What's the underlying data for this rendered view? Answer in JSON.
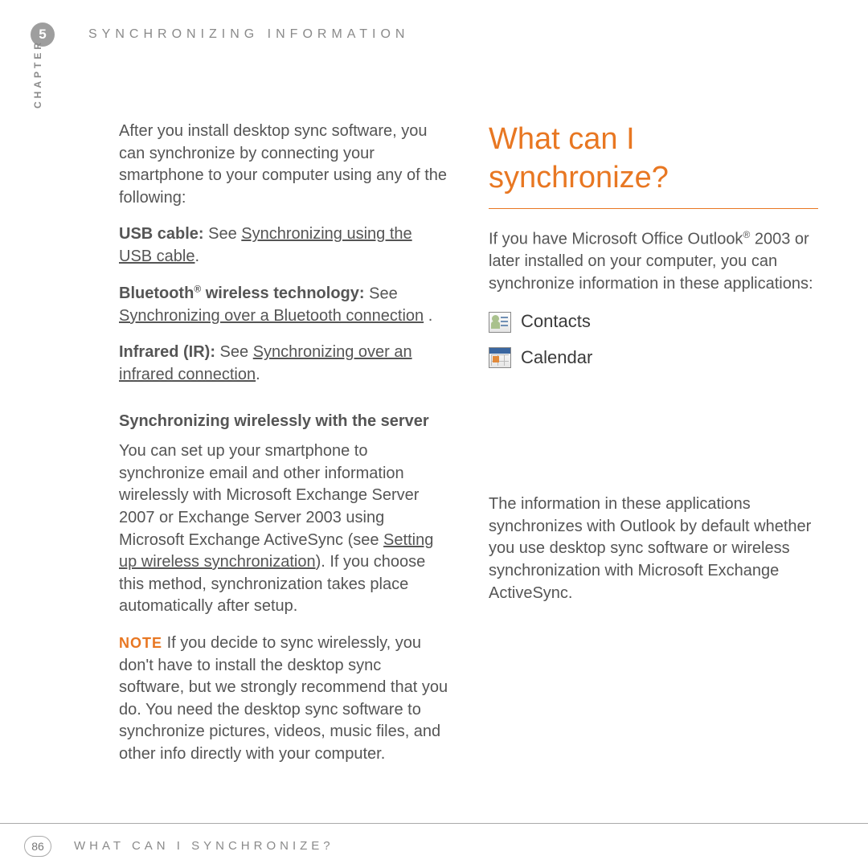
{
  "chapter": {
    "number": "5",
    "label": "CHAPTER"
  },
  "header": {
    "title": "SYNCHRONIZING INFORMATION"
  },
  "left": {
    "intro": "After you install desktop sync software, you can synchronize by connecting your smartphone to your computer using any of the following:",
    "usb_label": "USB cable:",
    "usb_see": " See ",
    "usb_link": "Synchronizing using the USB cable",
    "usb_period": ".",
    "bt_label": "Bluetooth",
    "bt_reg": "®",
    "bt_label2": " wireless technology:",
    "bt_see": " See ",
    "bt_link": "Synchronizing over a Bluetooth connection",
    "bt_period": " .",
    "ir_label": "Infrared (IR):",
    "ir_see": " See ",
    "ir_link": "Synchronizing over an infrared connection",
    "ir_period": ".",
    "subhead": "Synchronizing wirelessly with the server",
    "wireless_p1a": "You can set up your smartphone to synchronize email and other information wirelessly with Microsoft Exchange Server 2007 or Exchange Server 2003 using Microsoft Exchange ActiveSync (see ",
    "wireless_link": "Setting up wireless synchronization",
    "wireless_p1b": "). If you choose this method, synchronization takes place automatically after setup.",
    "note_label": "NOTE",
    "note_body": " If you decide to sync wirelessly, you don't have to install the desktop sync software, but we strongly recommend that you do. You need the desktop sync software to synchronize pictures, videos, music files, and other info directly with your computer."
  },
  "right": {
    "heading": "What can I synchronize?",
    "intro_a": "If you have Microsoft Office Outlook",
    "intro_reg": "®",
    "intro_b": " 2003 or later installed on your computer, you can synchronize information in these applications:",
    "contacts_label": "Contacts",
    "calendar_label": "Calendar",
    "p2": "The information in these applications synchronizes with Outlook by default whether you use desktop sync software or wireless synchronization with Microsoft Exchange ActiveSync."
  },
  "footer": {
    "page": "86",
    "title": "WHAT CAN I SYNCHRONIZE?"
  },
  "colors": {
    "accent": "#e87722",
    "text": "#555555",
    "muted": "#8a8a8a"
  }
}
